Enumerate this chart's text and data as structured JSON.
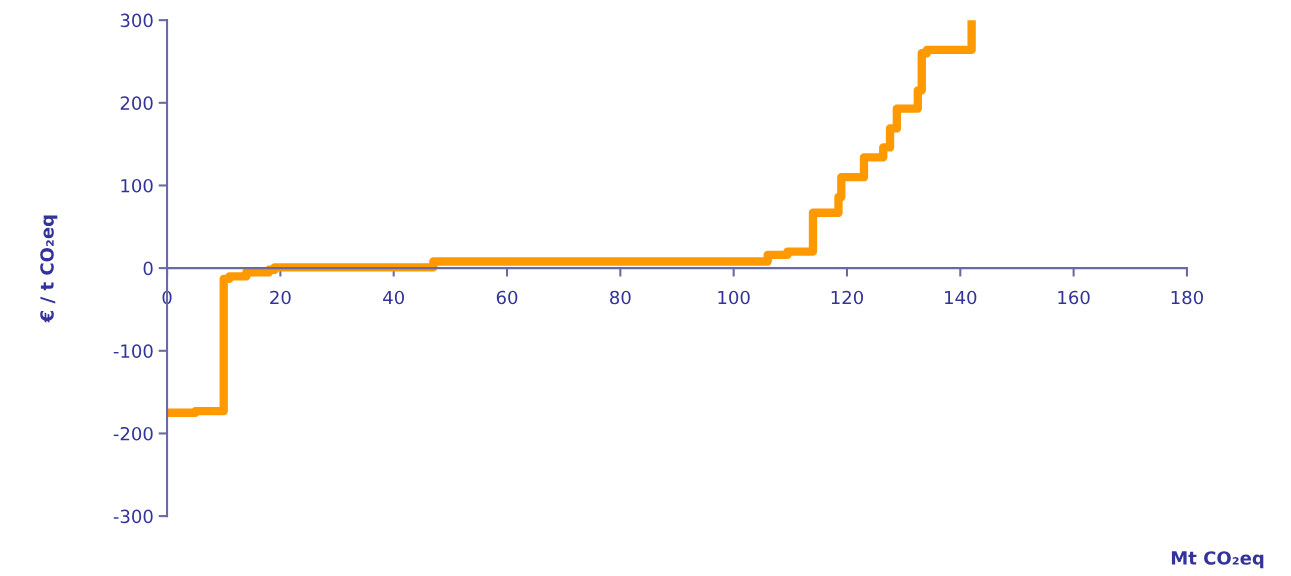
{
  "chart_data": {
    "type": "step",
    "xlabel": "Mt CO₂eq",
    "ylabel": "€ / t CO₂eq",
    "xlim": [
      0,
      180
    ],
    "xticks": [
      0,
      20,
      40,
      60,
      80,
      100,
      120,
      140,
      160,
      180
    ],
    "ylim": [
      -300,
      300
    ],
    "yticks": [
      -300,
      -200,
      -100,
      0,
      100,
      200,
      300
    ],
    "grid": false,
    "legend": false,
    "marker": "none",
    "line_style": "solid",
    "series": [
      {
        "color": "#ff9900",
        "x": [
          0,
          5,
          10,
          11,
          14,
          18,
          19,
          47,
          106,
          109.5,
          114,
          118.5,
          119,
          123,
          126.4,
          127.6,
          128.8,
          132.5,
          133.2,
          134.1,
          142
        ],
        "values": [
          -175,
          -173,
          -13,
          -10,
          -5,
          -2,
          1,
          8,
          16,
          20,
          67,
          86,
          110,
          134,
          146,
          169,
          193,
          215,
          260,
          264,
          300
        ]
      }
    ]
  }
}
